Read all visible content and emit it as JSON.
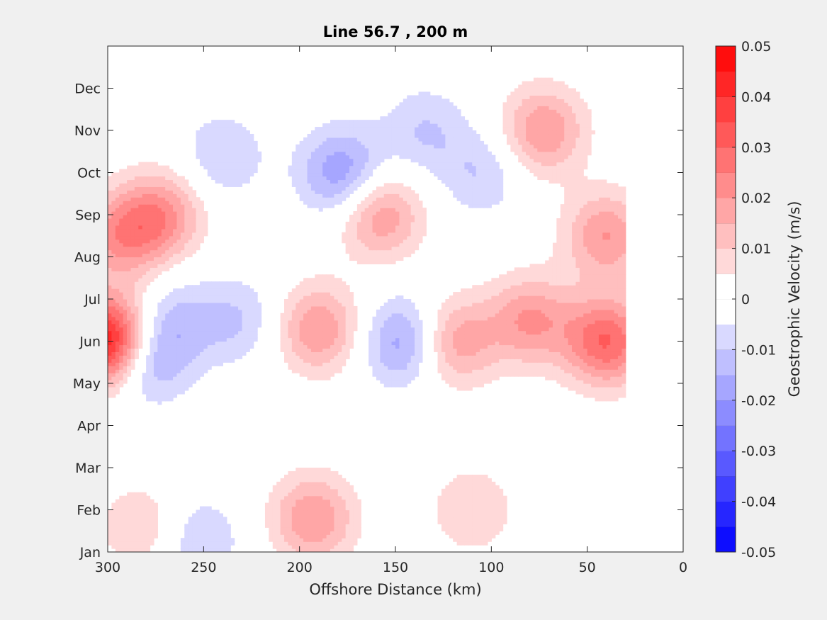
{
  "chart_data": {
    "type": "heatmap",
    "plot_kind": "filled-contour",
    "title": "Line 56.7 , 200 m",
    "xlabel": "Offshore Distance (km)",
    "ylabel": "",
    "xlim": [
      300,
      0
    ],
    "x_direction": "reversed",
    "x_ticks": [
      300,
      250,
      200,
      150,
      100,
      50,
      0
    ],
    "y_categories": [
      "Jan",
      "Feb",
      "Mar",
      "Apr",
      "May",
      "Jun",
      "Jul",
      "Aug",
      "Sep",
      "Oct",
      "Nov",
      "Dec"
    ],
    "ylim": [
      1,
      13
    ],
    "colorbar": {
      "label": "Geostrophic Velocity (m/s)",
      "range": [
        -0.05,
        0.05
      ],
      "ticks": [
        0.05,
        0.04,
        0.03,
        0.02,
        0.01,
        0,
        -0.01,
        -0.02,
        -0.03,
        -0.04,
        -0.05
      ],
      "tick_labels": [
        "0.05",
        "0.04",
        "0.03",
        "0.02",
        "0.01",
        "0",
        "-0.01",
        "-0.02",
        "-0.03",
        "-0.04",
        "-0.05"
      ],
      "levels": 20,
      "low_color": "#0000ff",
      "mid_color": "#ffffff",
      "high_color": "#ff0000"
    },
    "data_extent_km": [
      30,
      300
    ],
    "features": [
      {
        "x": 300,
        "month": 6.0,
        "value": 0.05
      },
      {
        "x": 293,
        "month": 8.5,
        "value": 0.02
      },
      {
        "x": 272,
        "month": 9.0,
        "value": 0.02
      },
      {
        "x": 281,
        "month": 5.6,
        "value": -0.02
      },
      {
        "x": 264,
        "month": 6.5,
        "value": -0.01
      },
      {
        "x": 283,
        "month": 1.6,
        "value": 0.01
      },
      {
        "x": 240,
        "month": 10.4,
        "value": -0.01
      },
      {
        "x": 232,
        "month": 6.5,
        "value": -0.01
      },
      {
        "x": 252,
        "month": 1.3,
        "value": -0.01
      },
      {
        "x": 190,
        "month": 6.3,
        "value": 0.02
      },
      {
        "x": 193,
        "month": 1.8,
        "value": 0.02
      },
      {
        "x": 178,
        "month": 10.0,
        "value": -0.02
      },
      {
        "x": 158,
        "month": 9.0,
        "value": 0.02
      },
      {
        "x": 145,
        "month": 6.0,
        "value": -0.02
      },
      {
        "x": 135,
        "month": 11.0,
        "value": -0.01
      },
      {
        "x": 120,
        "month": 6.0,
        "value": 0.02
      },
      {
        "x": 105,
        "month": 10.0,
        "value": -0.01
      },
      {
        "x": 80,
        "month": 6.5,
        "value": 0.02
      },
      {
        "x": 73,
        "month": 11.0,
        "value": 0.02
      },
      {
        "x": 40,
        "month": 6.0,
        "value": 0.03
      },
      {
        "x": 40,
        "month": 8.5,
        "value": 0.02
      },
      {
        "x": 110,
        "month": 2.0,
        "value": 0.01
      }
    ]
  }
}
